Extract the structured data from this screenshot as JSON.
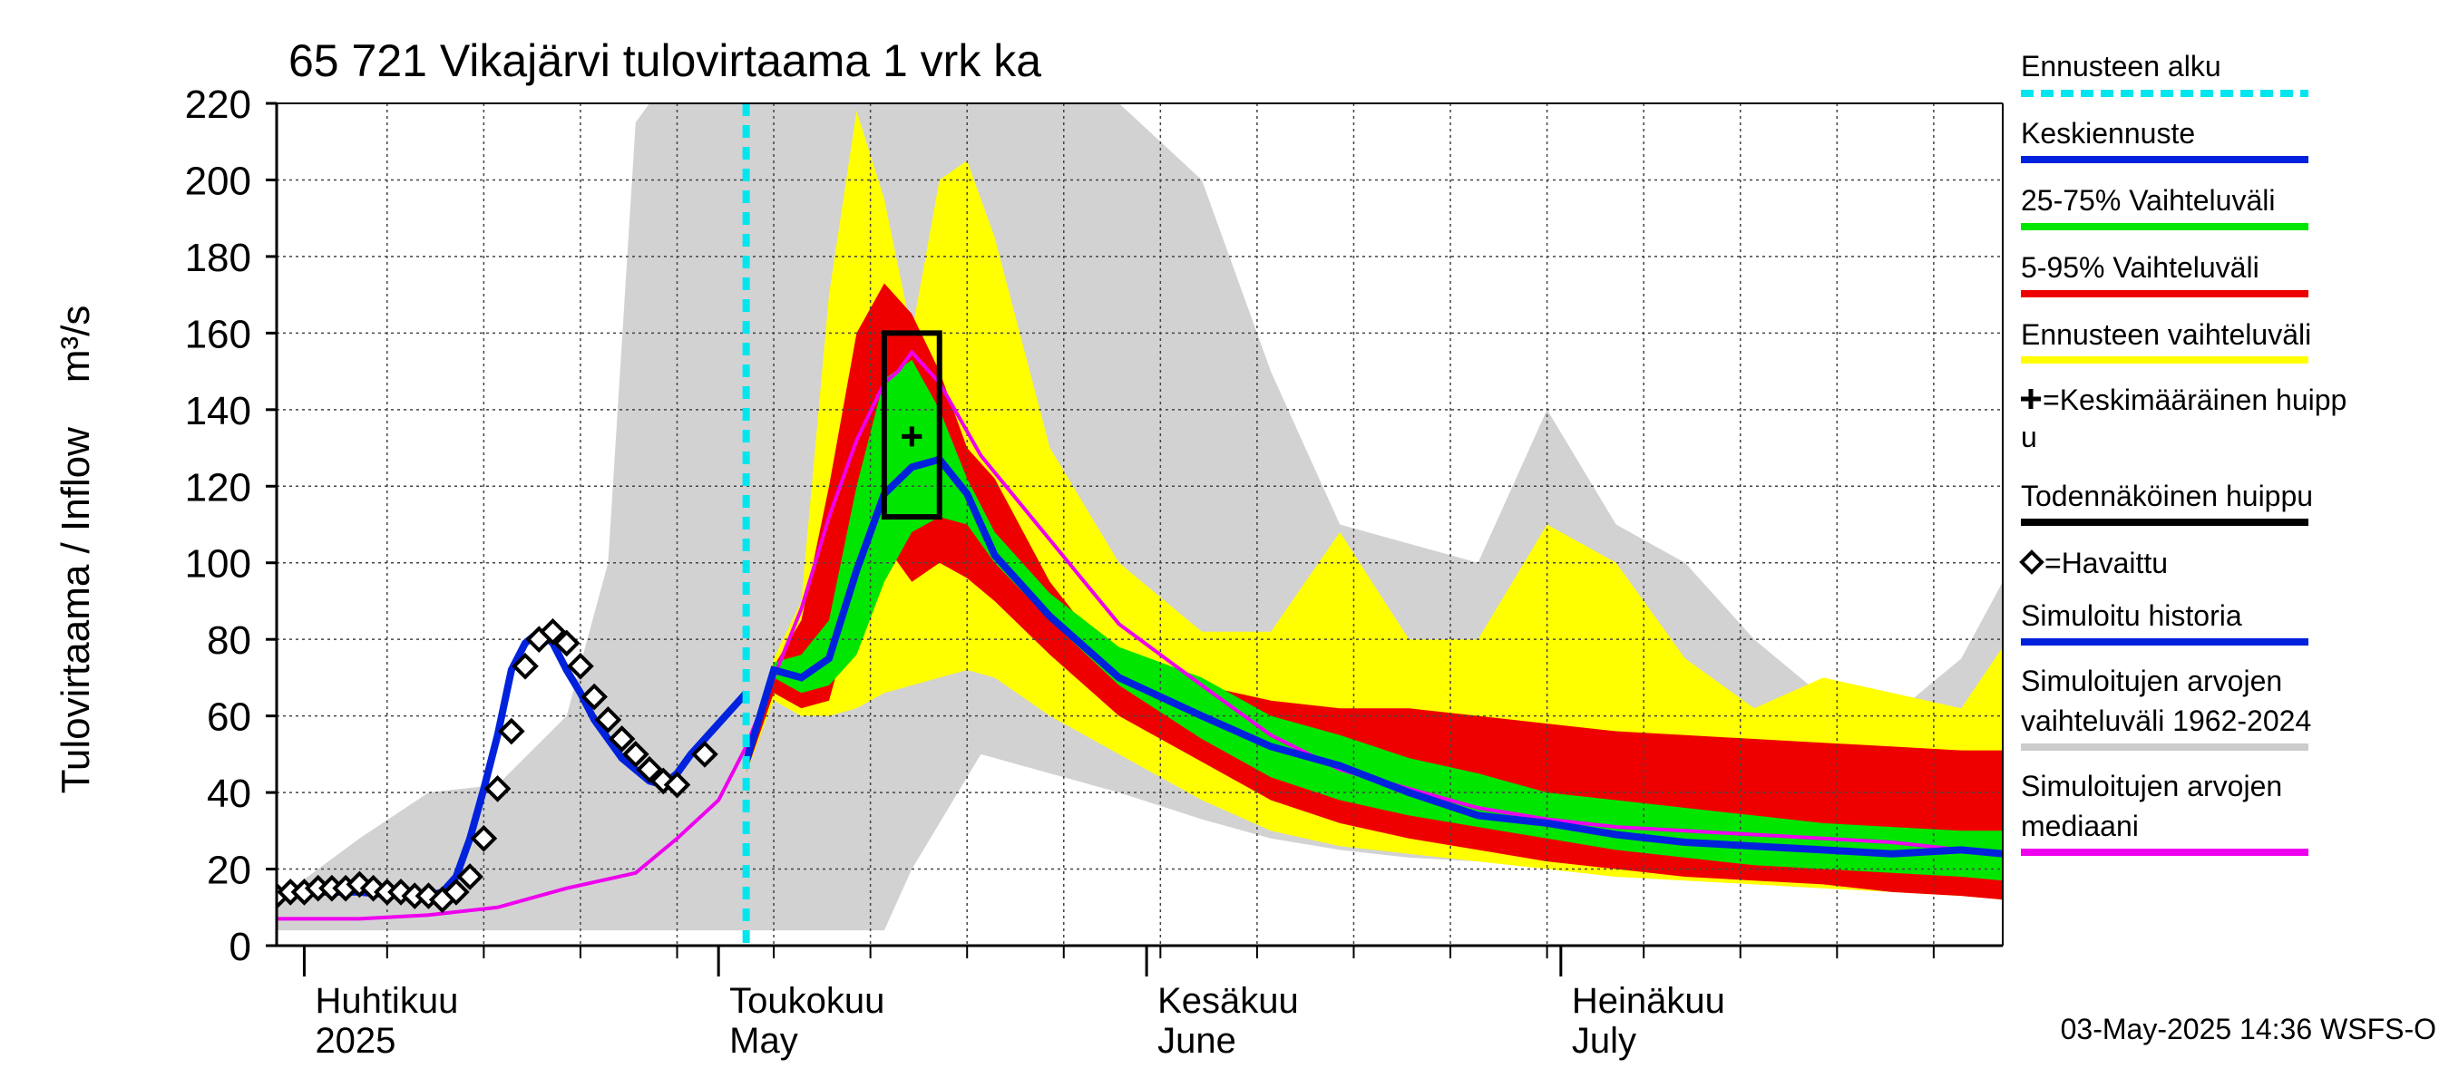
{
  "chart_data": {
    "type": "area",
    "title": "65 721 Vikajärvi tulovirtaama 1 vrk ka",
    "ylabel": "Tulovirtaama / Inflow    m³/s",
    "ylim": [
      0,
      220
    ],
    "yticks": [
      0,
      20,
      40,
      60,
      80,
      100,
      120,
      140,
      160,
      180,
      200,
      220
    ],
    "xlim": [
      "2025-03-30",
      "2025-08-02"
    ],
    "grid": true,
    "legend_placement": "right",
    "months": [
      {
        "line1": "Huhtikuu",
        "line2": "2025",
        "date": "2025-04-01"
      },
      {
        "line1": "Toukokuu",
        "line2": "May",
        "date": "2025-05-01"
      },
      {
        "line1": "Kesäkuu",
        "line2": "June",
        "date": "2025-06-01"
      },
      {
        "line1": "Heinäkuu",
        "line2": "July",
        "date": "2025-07-01"
      }
    ],
    "forecast_start": "2025-05-03",
    "footer": "03-May-2025 14:36 WSFS-O",
    "legend": [
      {
        "label": "Ennusteen alku",
        "color": "#00e5ee",
        "style": "dashed"
      },
      {
        "label": "Keskiennuste",
        "color": "#0022dd",
        "style": "line"
      },
      {
        "label": "25-75% Vaihteluväli",
        "color": "#00e600",
        "style": "line"
      },
      {
        "label": "5-95% Vaihteluväli",
        "color": "#ee0000",
        "style": "line"
      },
      {
        "label": "Ennusteen vaihteluväli",
        "color": "#ffff00",
        "style": "line"
      },
      {
        "label": "=Keskimääräinen huipp",
        "label2": "u",
        "color": "#000000",
        "style": "plus"
      },
      {
        "label": "Todennäköinen huippu",
        "color": "#000000",
        "style": "line"
      },
      {
        "label": "=Havaittu",
        "color": "#000000",
        "style": "diamond"
      },
      {
        "label": "Simuloitu historia",
        "color": "#0022dd",
        "style": "line"
      },
      {
        "label": "Simuloitujen arvojen",
        "label2": "vaihteluväli 1962-2024",
        "color": "#cccccc",
        "style": "line"
      },
      {
        "label": "Simuloitujen arvojen",
        "label2": "mediaani",
        "color": "#ee00ee",
        "style": "line"
      }
    ],
    "hist_range": {
      "x": [
        "2025-03-30",
        "2025-04-05",
        "2025-04-10",
        "2025-04-15",
        "2025-04-20",
        "2025-04-23",
        "2025-04-25",
        "2025-04-26",
        "2025-04-28",
        "2025-04-30",
        "2025-05-05",
        "2025-05-10",
        "2025-05-13",
        "2025-05-15",
        "2025-05-20",
        "2025-05-25",
        "2025-05-30",
        "2025-06-05",
        "2025-06-10",
        "2025-06-15",
        "2025-06-20",
        "2025-06-25",
        "2025-06-30",
        "2025-07-05",
        "2025-07-10",
        "2025-07-15",
        "2025-07-20",
        "2025-07-25",
        "2025-07-30",
        "2025-08-02"
      ],
      "lower": [
        4,
        4,
        4,
        4,
        4,
        4,
        4,
        4,
        4,
        4,
        4,
        4,
        4,
        20,
        50,
        45,
        40,
        33,
        28,
        25,
        23,
        22,
        20,
        18,
        17,
        16,
        15,
        14,
        13,
        12
      ],
      "upper": [
        12,
        28,
        40,
        42,
        60,
        100,
        215,
        220,
        220,
        220,
        220,
        220,
        220,
        220,
        220,
        220,
        220,
        200,
        150,
        110,
        105,
        100,
        140,
        110,
        100,
        80,
        65,
        60,
        75,
        95
      ]
    },
    "fc_range": {
      "x": [
        "2025-05-03",
        "2025-05-05",
        "2025-05-07",
        "2025-05-09",
        "2025-05-11",
        "2025-05-13",
        "2025-05-15",
        "2025-05-17",
        "2025-05-19",
        "2025-05-21",
        "2025-05-25",
        "2025-05-30",
        "2025-06-05",
        "2025-06-10",
        "2025-06-15",
        "2025-06-20",
        "2025-06-25",
        "2025-06-30",
        "2025-07-05",
        "2025-07-10",
        "2025-07-15",
        "2025-07-20",
        "2025-07-25",
        "2025-07-30",
        "2025-08-02"
      ],
      "lower": [
        45,
        64,
        60,
        60,
        62,
        66,
        68,
        70,
        72,
        70,
        60,
        50,
        38,
        30,
        26,
        24,
        22,
        20,
        18,
        17,
        16,
        15,
        14,
        13,
        12
      ],
      "upper": [
        45,
        75,
        90,
        170,
        218,
        195,
        160,
        200,
        205,
        185,
        130,
        100,
        82,
        82,
        108,
        80,
        80,
        110,
        100,
        75,
        62,
        70,
        66,
        62,
        78
      ]
    },
    "p5_95": {
      "x": [
        "2025-05-03",
        "2025-05-05",
        "2025-05-07",
        "2025-05-09",
        "2025-05-11",
        "2025-05-13",
        "2025-05-15",
        "2025-05-17",
        "2025-05-19",
        "2025-05-21",
        "2025-05-25",
        "2025-05-30",
        "2025-06-05",
        "2025-06-10",
        "2025-06-15",
        "2025-06-20",
        "2025-06-25",
        "2025-06-30",
        "2025-07-05",
        "2025-07-10",
        "2025-07-15",
        "2025-07-20",
        "2025-07-25",
        "2025-07-30",
        "2025-08-02"
      ],
      "lower": [
        45,
        66,
        62,
        64,
        90,
        105,
        95,
        100,
        96,
        90,
        76,
        60,
        48,
        38,
        32,
        28,
        25,
        22,
        20,
        18,
        17,
        16,
        14,
        13,
        12
      ],
      "upper": [
        45,
        73,
        85,
        120,
        160,
        173,
        165,
        150,
        130,
        122,
        95,
        72,
        68,
        64,
        62,
        62,
        60,
        58,
        56,
        55,
        54,
        53,
        52,
        51,
        51
      ]
    },
    "p25_75": {
      "x": [
        "2025-05-03",
        "2025-05-05",
        "2025-05-07",
        "2025-05-09",
        "2025-05-11",
        "2025-05-13",
        "2025-05-15",
        "2025-05-17",
        "2025-05-19",
        "2025-05-21",
        "2025-05-25",
        "2025-05-30",
        "2025-06-05",
        "2025-06-10",
        "2025-06-15",
        "2025-06-20",
        "2025-06-25",
        "2025-06-30",
        "2025-07-05",
        "2025-07-10",
        "2025-07-15",
        "2025-07-20",
        "2025-07-25",
        "2025-07-30",
        "2025-08-02"
      ],
      "lower": [
        45,
        70,
        66,
        68,
        76,
        95,
        108,
        112,
        110,
        100,
        85,
        68,
        54,
        44,
        38,
        34,
        31,
        28,
        25,
        23,
        21,
        20,
        19,
        18,
        17
      ],
      "upper": [
        45,
        74,
        76,
        85,
        120,
        148,
        153,
        140,
        122,
        108,
        92,
        78,
        70,
        60,
        55,
        49,
        45,
        40,
        38,
        36,
        34,
        32,
        31,
        30,
        30
      ]
    },
    "median_fc": {
      "x": [
        "2025-05-03",
        "2025-05-05",
        "2025-05-07",
        "2025-05-09",
        "2025-05-11",
        "2025-05-13",
        "2025-05-15",
        "2025-05-17",
        "2025-05-19",
        "2025-05-21",
        "2025-05-25",
        "2025-05-30",
        "2025-06-05",
        "2025-06-10",
        "2025-06-15",
        "2025-06-20",
        "2025-06-25",
        "2025-06-30",
        "2025-07-05",
        "2025-07-10",
        "2025-07-15",
        "2025-07-20",
        "2025-07-25",
        "2025-07-30",
        "2025-08-02"
      ],
      "y": [
        48,
        72,
        70,
        75,
        98,
        118,
        125,
        127,
        118,
        102,
        86,
        70,
        60,
        52,
        47,
        40,
        34,
        32,
        29,
        27,
        26,
        25,
        24,
        25,
        24
      ]
    },
    "sim_history": {
      "x": [
        "2025-03-30",
        "2025-04-02",
        "2025-04-05",
        "2025-04-08",
        "2025-04-10",
        "2025-04-11",
        "2025-04-12",
        "2025-04-13",
        "2025-04-14",
        "2025-04-15",
        "2025-04-16",
        "2025-04-17",
        "2025-04-18",
        "2025-04-19",
        "2025-04-20",
        "2025-04-21",
        "2025-04-22",
        "2025-04-23",
        "2025-04-24",
        "2025-04-25",
        "2025-04-26",
        "2025-04-27",
        "2025-04-28",
        "2025-04-29",
        "2025-05-01",
        "2025-05-03"
      ],
      "y": [
        13,
        14,
        14,
        13,
        13,
        14,
        18,
        28,
        41,
        55,
        72,
        79,
        82,
        79,
        72,
        66,
        59,
        54,
        49,
        46,
        43,
        42,
        45,
        50,
        58,
        66
      ]
    },
    "median_hist": {
      "x": [
        "2025-03-30",
        "2025-04-05",
        "2025-04-10",
        "2025-04-15",
        "2025-04-20",
        "2025-04-25",
        "2025-04-28",
        "2025-05-01",
        "2025-05-03",
        "2025-05-05",
        "2025-05-07",
        "2025-05-09",
        "2025-05-11",
        "2025-05-13",
        "2025-05-14",
        "2025-05-15",
        "2025-05-17",
        "2025-05-20",
        "2025-05-25",
        "2025-05-30",
        "2025-06-05",
        "2025-06-10",
        "2025-06-15",
        "2025-06-20",
        "2025-06-25",
        "2025-06-30",
        "2025-07-05",
        "2025-07-10",
        "2025-07-15",
        "2025-07-20",
        "2025-07-25",
        "2025-07-30",
        "2025-08-02"
      ],
      "y": [
        7,
        7,
        8,
        10,
        15,
        19,
        28,
        38,
        52,
        70,
        88,
        112,
        132,
        147,
        150,
        155,
        147,
        128,
        106,
        84,
        68,
        55,
        46,
        41,
        36,
        33,
        31,
        30,
        29,
        28,
        27,
        25,
        24
      ]
    },
    "observed": {
      "x": [
        "2025-03-30",
        "2025-03-31",
        "2025-04-01",
        "2025-04-02",
        "2025-04-03",
        "2025-04-04",
        "2025-04-05",
        "2025-04-06",
        "2025-04-07",
        "2025-04-08",
        "2025-04-09",
        "2025-04-10",
        "2025-04-11",
        "2025-04-12",
        "2025-04-13",
        "2025-04-14",
        "2025-04-15",
        "2025-04-16",
        "2025-04-17",
        "2025-04-18",
        "2025-04-19",
        "2025-04-20",
        "2025-04-21",
        "2025-04-22",
        "2025-04-23",
        "2025-04-24",
        "2025-04-25",
        "2025-04-26",
        "2025-04-27",
        "2025-04-28",
        "2025-04-30"
      ],
      "y": [
        13,
        14,
        14,
        15,
        15,
        15,
        16,
        15,
        14,
        14,
        13,
        13,
        12,
        14,
        18,
        28,
        41,
        56,
        73,
        80,
        82,
        79,
        73,
        65,
        59,
        54,
        50,
        46,
        43,
        42,
        50
      ]
    },
    "likely_peak": {
      "x0": "2025-05-13",
      "x1": "2025-05-17",
      "ymin": 112,
      "ymax": 160
    },
    "mean_peak": {
      "x": "2025-05-15",
      "y": 133
    }
  }
}
